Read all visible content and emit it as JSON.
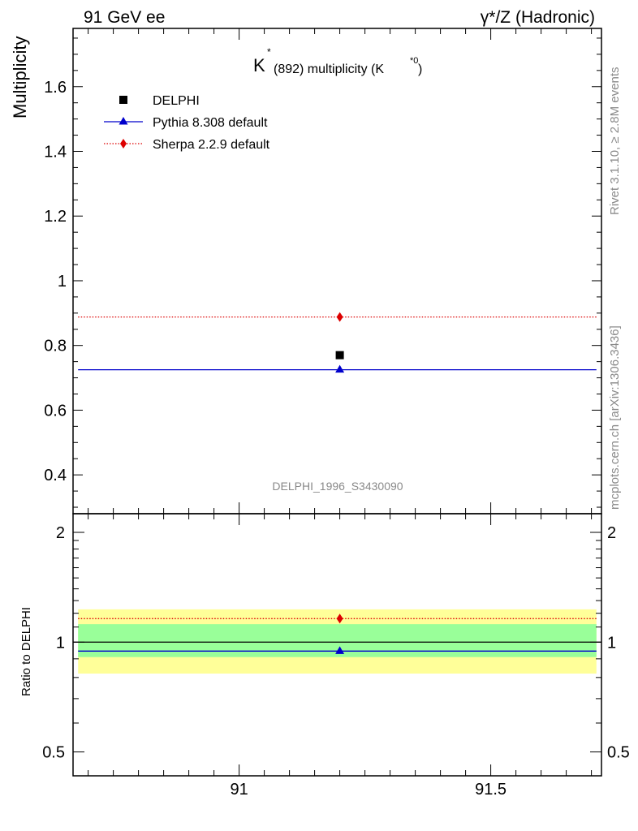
{
  "header": {
    "left": "91 GeV ee",
    "right": "γ*/Z (Hadronic)"
  },
  "side": {
    "rivet": "Rivet 3.1.10, ≥ 2.8M events",
    "mcplots": "mcplots.cern.ch [arXiv:1306.3436]"
  },
  "plot_title": {
    "main": "K",
    "star": "*",
    "rest": "(892) multiplicity (K",
    "sup2": "*0",
    "close": ")"
  },
  "analysis_id": "DELPHI_1996_S3430090",
  "legend": [
    {
      "label": "DELPHI",
      "marker": "square",
      "color": "#000000"
    },
    {
      "label": "Pythia 8.308 default",
      "marker": "triangle",
      "color": "#0000cc"
    },
    {
      "label": "Sherpa 2.2.9 default",
      "marker": "diamond",
      "color": "#dd0000"
    }
  ],
  "chart_data": [
    {
      "type": "scatter",
      "panel": "main",
      "ylabel": "Multiplicity",
      "xlim": [
        90.67,
        91.72
      ],
      "ylim": [
        0.28,
        1.78
      ],
      "yticks": [
        0.4,
        0.6,
        0.8,
        1.0,
        1.2,
        1.4,
        1.6
      ],
      "ytick_labels": [
        "0.4",
        "0.6",
        "0.8",
        "1",
        "1.2",
        "1.4",
        "1.6"
      ],
      "series": [
        {
          "name": "DELPHI",
          "x": [
            91.2
          ],
          "y": [
            0.77
          ],
          "style": "points",
          "color": "#000000"
        },
        {
          "name": "Pythia 8.308 default",
          "x": [
            91.2
          ],
          "y": [
            0.725
          ],
          "x_range": [
            90.68,
            91.71
          ],
          "style": "solid",
          "color": "#0000cc"
        },
        {
          "name": "Sherpa 2.2.9 default",
          "x": [
            91.2
          ],
          "y": [
            0.888
          ],
          "x_range": [
            90.68,
            91.71
          ],
          "style": "dotted",
          "color": "#dd0000"
        }
      ]
    },
    {
      "type": "scatter",
      "panel": "ratio",
      "ylabel": "Ratio to DELPHI",
      "xlim": [
        90.67,
        91.72
      ],
      "ylim": [
        0.43,
        2.25
      ],
      "ylog": true,
      "yticks": [
        0.5,
        1,
        2
      ],
      "ytick_labels": [
        "0.5",
        "1",
        "2"
      ],
      "xticks": [
        91,
        91.5
      ],
      "xtick_labels": [
        "91",
        "91.5"
      ],
      "bands": [
        {
          "level": "2 sigma",
          "lo": 0.82,
          "hi": 1.23,
          "color": "#ffff99"
        },
        {
          "level": "1 sigma",
          "lo": 0.91,
          "hi": 1.12,
          "color": "#99ff99"
        }
      ],
      "series": [
        {
          "name": "Pythia 8.308 default",
          "x": [
            91.2
          ],
          "y": [
            0.945
          ],
          "x_range": [
            90.68,
            91.71
          ],
          "style": "solid",
          "color": "#0000cc"
        },
        {
          "name": "Sherpa 2.2.9 default",
          "x": [
            91.2
          ],
          "y": [
            1.16
          ],
          "x_range": [
            90.68,
            91.71
          ],
          "style": "dotted",
          "color": "#dd0000"
        }
      ]
    }
  ]
}
